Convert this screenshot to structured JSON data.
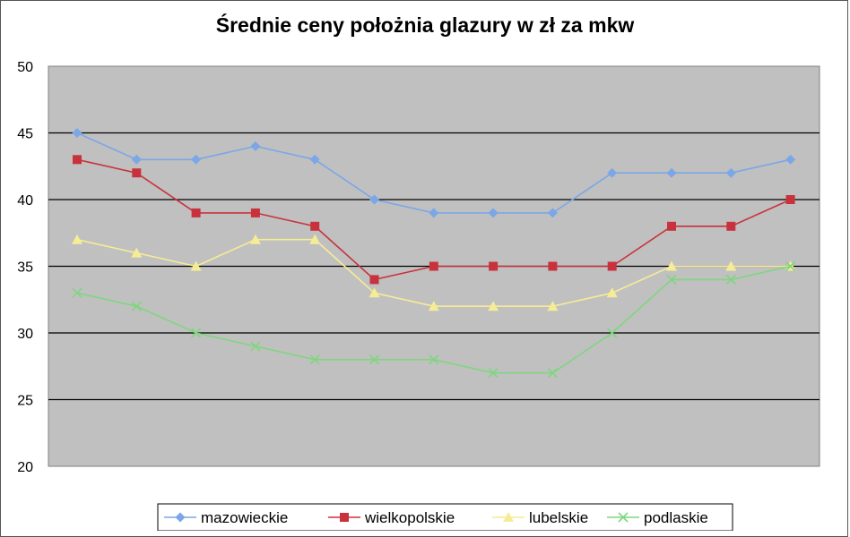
{
  "chart_data": {
    "type": "line",
    "title": "Średnie ceny położnia glazury w zł za mkw",
    "xlabel": "",
    "ylabel": "",
    "ylim": [
      20,
      50
    ],
    "yticks": [
      "50",
      "45",
      "40",
      "35",
      "30",
      "25",
      "20"
    ],
    "x": [
      1,
      2,
      3,
      4,
      5,
      6,
      7,
      8,
      9,
      10,
      11,
      12,
      13
    ],
    "grid": true,
    "legend_position": "bottom",
    "background_color": "#c0c0c0",
    "series": [
      {
        "name": "mazowieckie",
        "color": "#7ba7e6",
        "marker": "diamond",
        "values": [
          45,
          43,
          43,
          44,
          43,
          40,
          39,
          39,
          39,
          42,
          42,
          42,
          43
        ]
      },
      {
        "name": "wielkopolskie",
        "color": "#c8323c",
        "marker": "square",
        "values": [
          43,
          42,
          39,
          39,
          38,
          34,
          35,
          35,
          35,
          35,
          38,
          38,
          40
        ]
      },
      {
        "name": "lubelskie",
        "color": "#f6ec96",
        "marker": "triangle",
        "values": [
          37,
          36,
          35,
          37,
          37,
          33,
          32,
          32,
          32,
          33,
          35,
          35,
          35
        ]
      },
      {
        "name": "podlaskie",
        "color": "#7fd67f",
        "marker": "x",
        "values": [
          33,
          32,
          30,
          29,
          28,
          28,
          28,
          27,
          27,
          30,
          34,
          34,
          35
        ]
      }
    ]
  }
}
